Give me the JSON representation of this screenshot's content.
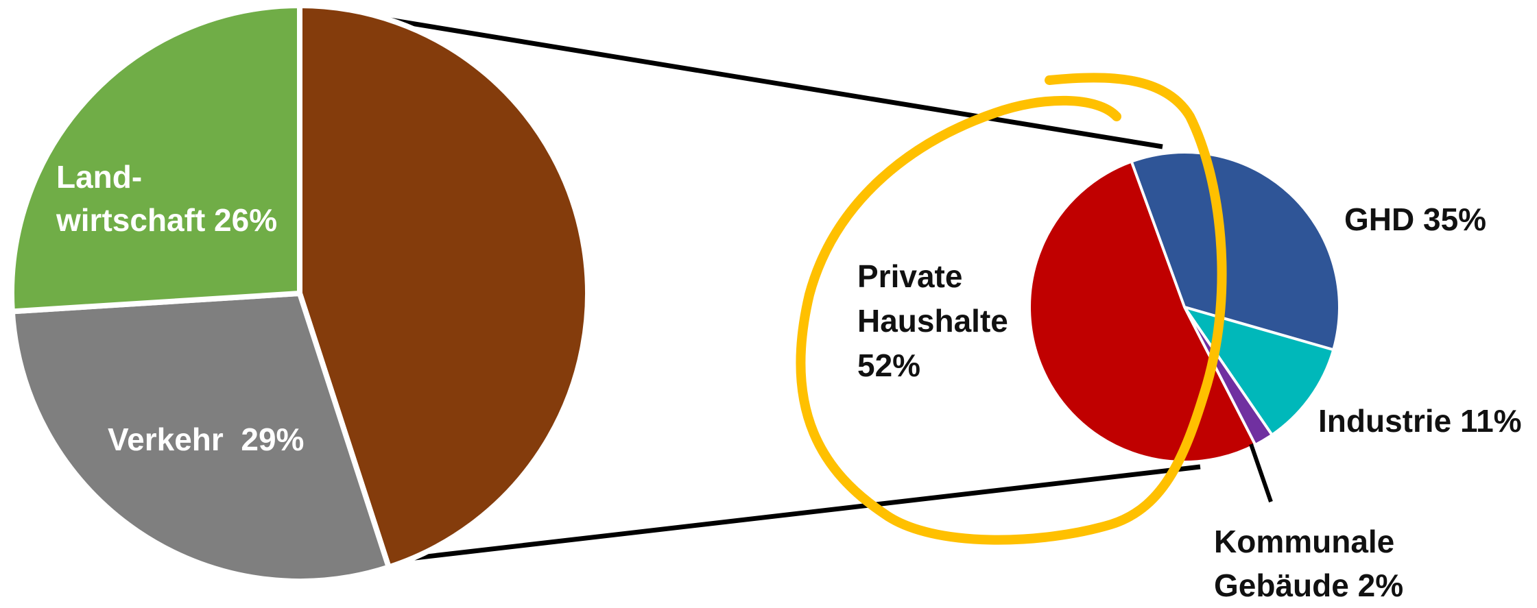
{
  "chart_data": [
    {
      "type": "pie",
      "slices": [
        {
          "key": "rest",
          "label": "",
          "label2": "",
          "value": 45,
          "color": "#843C0C"
        },
        {
          "key": "verkehr",
          "label": "Verkehr  29%",
          "label2": "",
          "value": 29,
          "color": "#7F7F7F"
        },
        {
          "key": "landwirtschaft",
          "label": "Land-",
          "label2": "wirtschaft 26%",
          "value": 26,
          "color": "#70AD47"
        }
      ]
    },
    {
      "type": "pie",
      "slices": [
        {
          "key": "ghd",
          "label": "GHD 35%",
          "label2": "",
          "label3": "",
          "value": 35,
          "color": "#2F5597"
        },
        {
          "key": "industrie",
          "label": "Industrie 11%",
          "label2": "",
          "label3": "",
          "value": 11,
          "color": "#00B8BA"
        },
        {
          "key": "kommunale",
          "label": "Kommunale",
          "label2": "Gebäude 2%",
          "label3": "",
          "value": 2,
          "color": "#7030A0"
        },
        {
          "key": "private",
          "label": "Private",
          "label2": "Haushalte",
          "label3": "52%",
          "value": 52,
          "color": "#C00000"
        }
      ]
    }
  ],
  "annotation": {
    "shape": "hand-drawn-loop",
    "color": "#FFC000"
  }
}
